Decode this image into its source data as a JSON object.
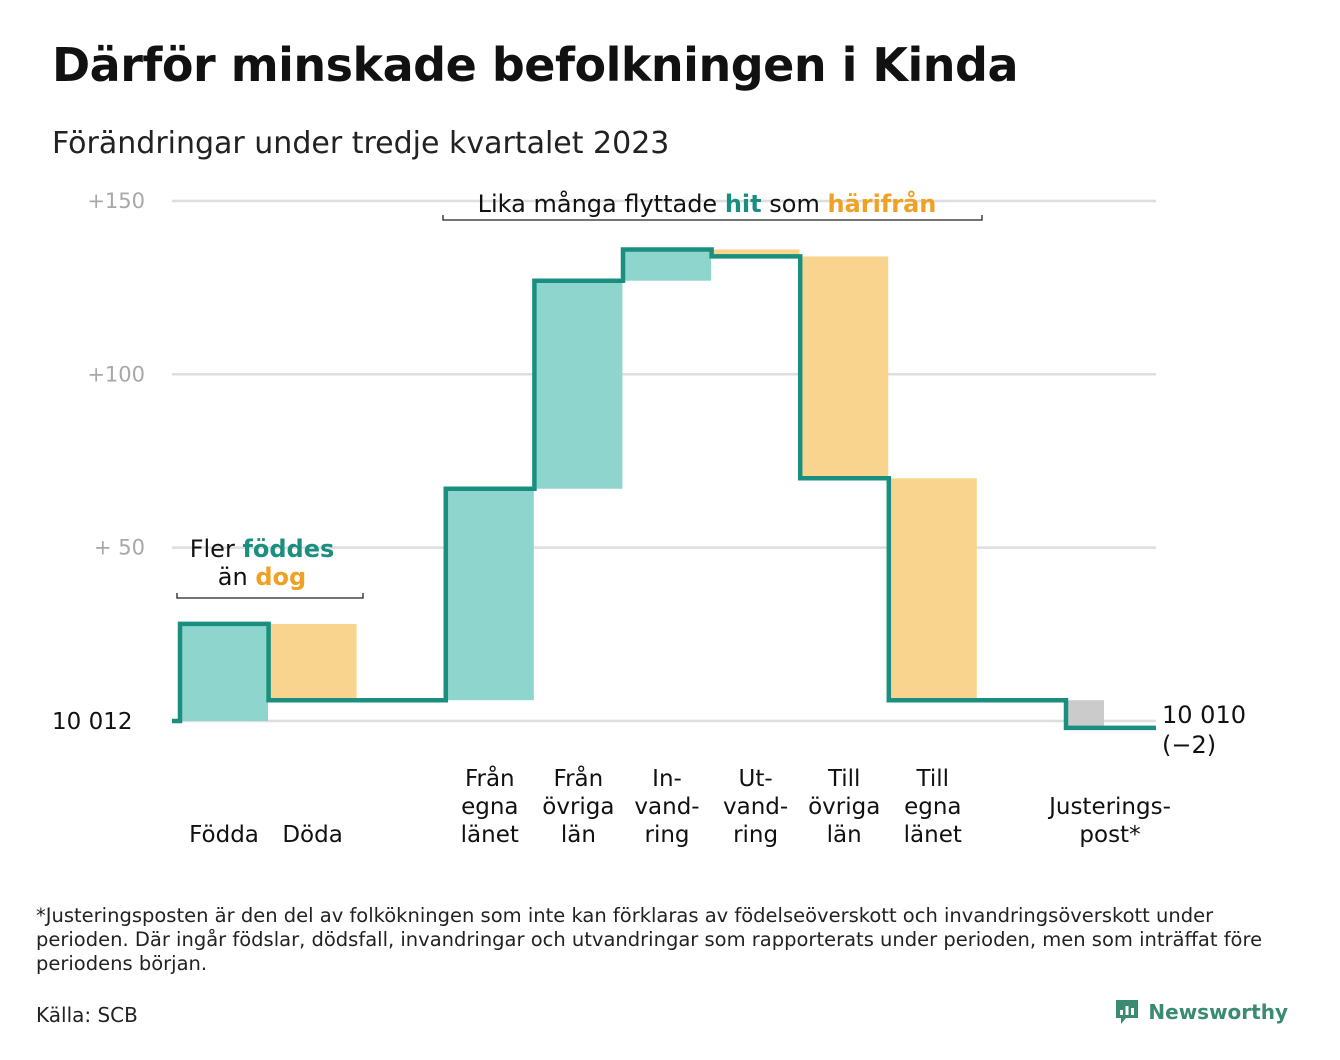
{
  "title": "Därför minskade befolkningen i Kinda",
  "subtitle": "Förändringar under tredje kvartalet 2023",
  "colors": {
    "increase": "#8ed5cd",
    "decrease": "#f9d48f",
    "adjustment": "#cbcbcb",
    "line": "#1a8f80",
    "teal_text": "#1a8f80",
    "orange_text": "#f0a024",
    "grid": "#dedede",
    "axis_text": "#a8a8a8"
  },
  "chart_data": {
    "type": "bar",
    "subtype": "waterfall",
    "start_value": 10012,
    "start_label": "10  012",
    "end_value": 10010,
    "end_label": "10 010",
    "end_change_label": "(−2)",
    "y_ticks": [
      {
        "value": 150,
        "label": "+150"
      },
      {
        "value": 100,
        "label": "+100"
      },
      {
        "value": 50,
        "label": "+  50"
      }
    ],
    "ylim": [
      0,
      150
    ],
    "steps": [
      {
        "label_lines": [
          "Födda"
        ],
        "delta": 28,
        "kind": "increase"
      },
      {
        "label_lines": [
          "Döda"
        ],
        "delta": -22,
        "kind": "decrease"
      },
      {
        "label_lines": [],
        "delta": 0,
        "kind": "gap"
      },
      {
        "label_lines": [
          "Från",
          "egna",
          "länet"
        ],
        "delta": 61,
        "kind": "increase"
      },
      {
        "label_lines": [
          "Från",
          "övriga",
          "län"
        ],
        "delta": 60,
        "kind": "increase"
      },
      {
        "label_lines": [
          "In-",
          "vand-",
          "ring"
        ],
        "delta": 9,
        "kind": "increase"
      },
      {
        "label_lines": [
          "Ut-",
          "vand-",
          "ring"
        ],
        "delta": -2,
        "kind": "decrease"
      },
      {
        "label_lines": [
          "Till",
          "övriga",
          "län"
        ],
        "delta": -64,
        "kind": "decrease"
      },
      {
        "label_lines": [
          "Till",
          "egna",
          "länet"
        ],
        "delta": -64,
        "kind": "decrease"
      },
      {
        "label_lines": [],
        "delta": 0,
        "kind": "gap"
      },
      {
        "label_lines": [
          "Justerings-",
          "post*"
        ],
        "delta": -8,
        "kind": "adjustment"
      }
    ],
    "annotations": [
      {
        "id": "births",
        "parts": [
          {
            "line": 1,
            "text": "Fler ",
            "color": "normal"
          },
          {
            "line": 1,
            "text": "föddes",
            "color": "teal"
          },
          {
            "line": 2,
            "text": "än ",
            "color": "normal"
          },
          {
            "line": 2,
            "text": "dog",
            "color": "orange"
          }
        ]
      },
      {
        "id": "migration",
        "parts": [
          {
            "line": 1,
            "text": "Lika många flyttade ",
            "color": "normal"
          },
          {
            "line": 1,
            "text": "hit",
            "color": "teal"
          },
          {
            "line": 1,
            "text": " som ",
            "color": "normal"
          },
          {
            "line": 1,
            "text": "härifrån",
            "color": "orange"
          }
        ]
      }
    ]
  },
  "footnote": "*Justeringsposten är den del av folkökningen som inte kan förklaras av födelseöverskott och invandringsöverskott under perioden. Där ingår födslar, dödsfall, invandringar och utvandringar som rapporterats under perioden, men som inträffat före periodens början.",
  "source": "Källa: SCB",
  "brand": {
    "name": "Newsworthy",
    "icon": "newsworthy-logo-icon"
  }
}
